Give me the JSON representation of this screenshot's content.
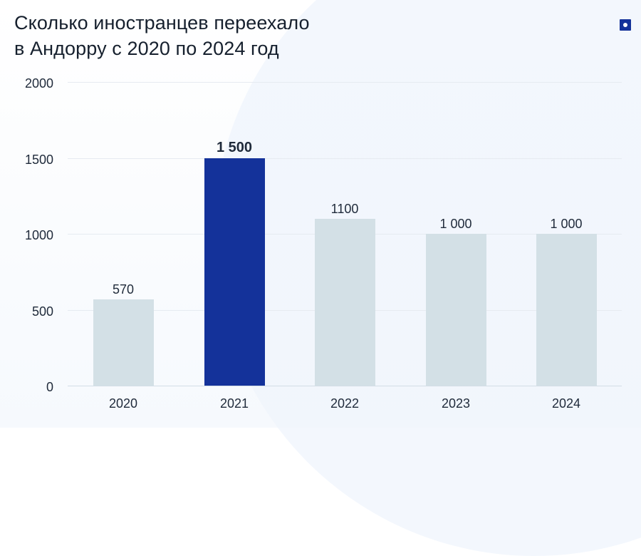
{
  "header": {
    "title_line1": "Сколько иностранцев переехало",
    "title_line2": "в Андорру с 2020 по 2024 год",
    "badge_icon": "brand-square-dot-icon"
  },
  "colors": {
    "highlight_bar": "#14329a",
    "default_bar": "#d3e0e6",
    "gridline": "#e6ebf1",
    "text": "#1f2a3a"
  },
  "chart_data": {
    "type": "bar",
    "title": "Сколько иностранцев переехало в Андорру с 2020 по 2024 год",
    "xlabel": "",
    "ylabel": "",
    "categories": [
      "2020",
      "2021",
      "2022",
      "2023",
      "2024"
    ],
    "values": [
      570,
      1500,
      1100,
      1000,
      1000
    ],
    "value_labels": [
      "570",
      "1 500",
      "1100",
      "1 000",
      "1 000"
    ],
    "highlighted_index": 1,
    "ylim": [
      0,
      2000
    ],
    "yticks": [
      "0",
      "500",
      "1000",
      "1500",
      "2000"
    ],
    "grid": true,
    "legend": "none"
  }
}
